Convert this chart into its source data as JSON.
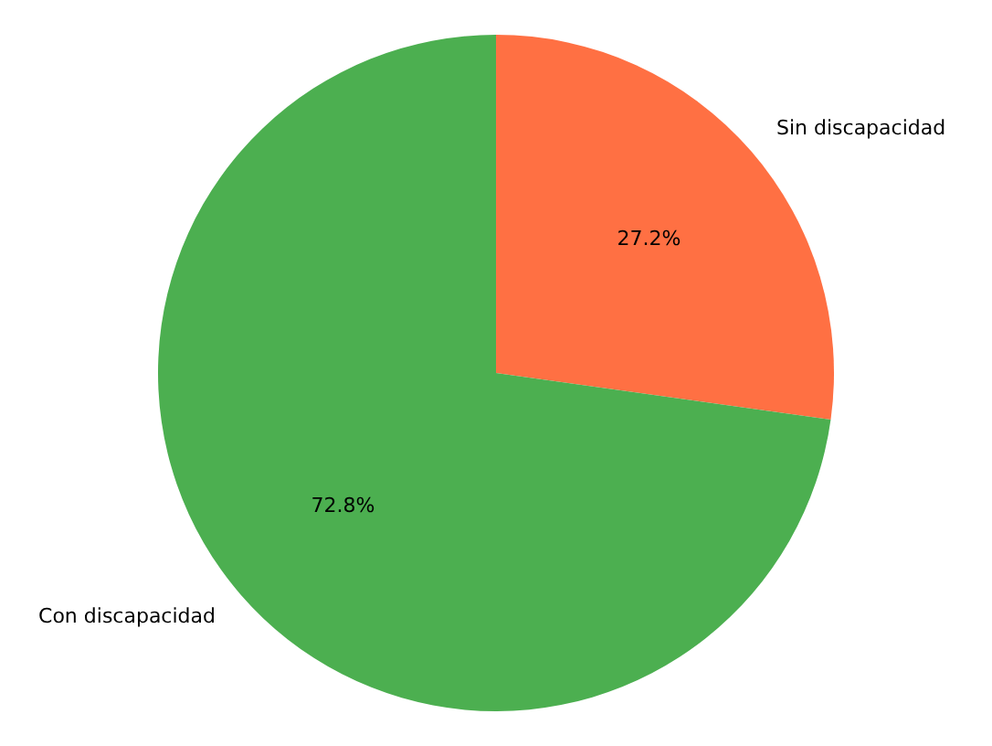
{
  "chart_data": {
    "type": "pie",
    "categories": [
      "Sin discapacidad",
      "Con discapacidad"
    ],
    "values": [
      27.2,
      72.8
    ],
    "colors": [
      "#ff7043",
      "#4caf50"
    ],
    "value_labels": [
      "27.2%",
      "72.8%"
    ]
  }
}
